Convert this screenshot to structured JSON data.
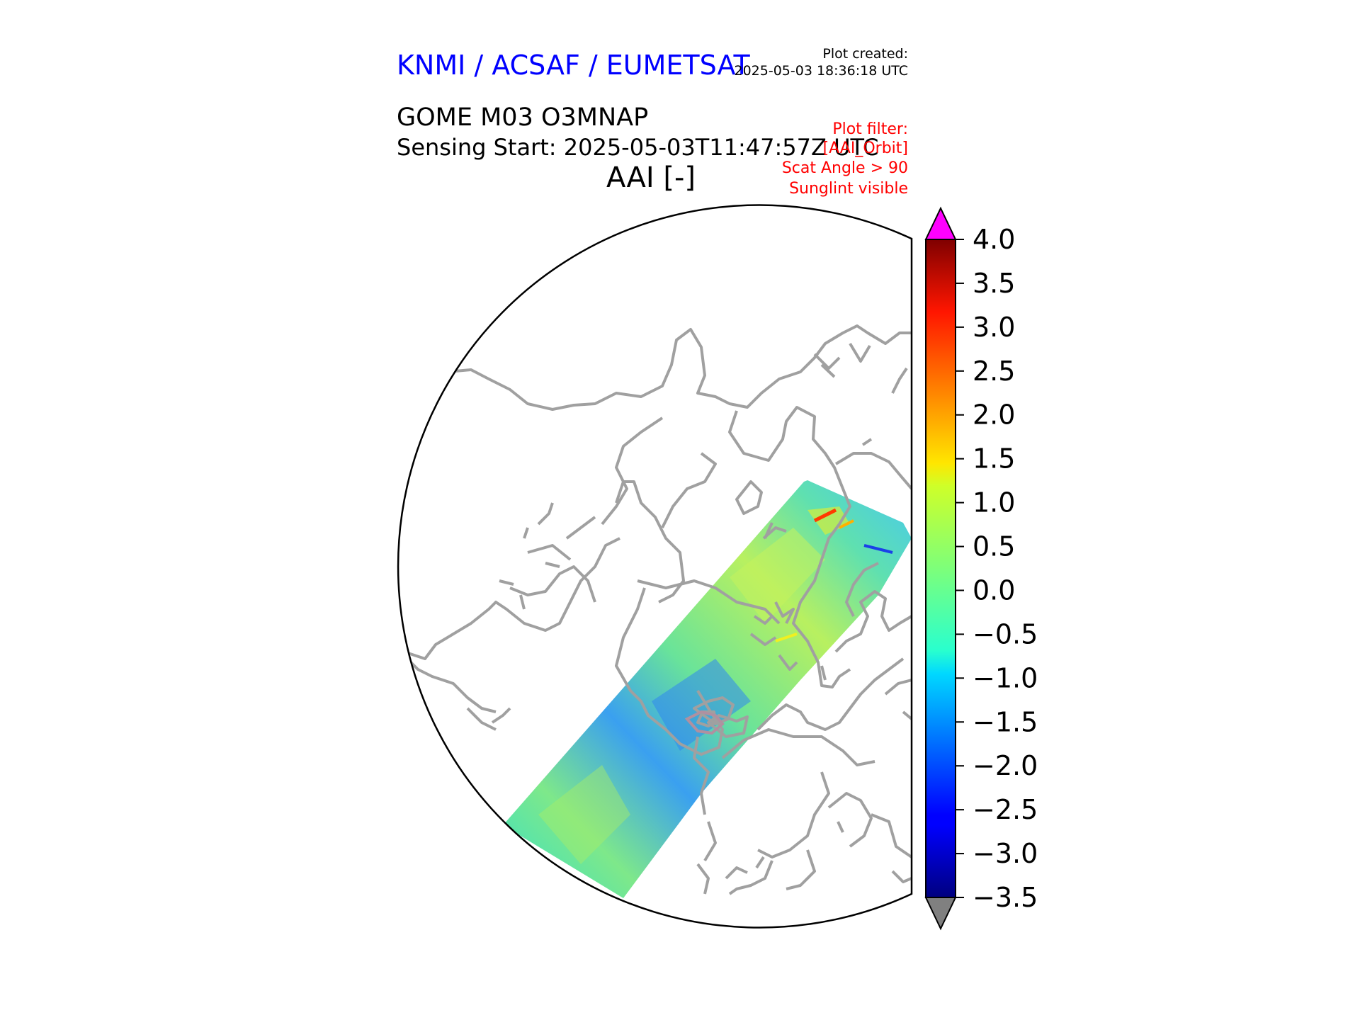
{
  "header": {
    "organization": "KNMI / ACSAF / EUMETSAT",
    "organization_color": "#0000ff",
    "plot_created_label": "Plot created:",
    "plot_created_time": "2025-05-03 18:36:18 UTC"
  },
  "product": {
    "title": "GOME M03 O3MNAP",
    "sensing_start": "Sensing Start: 2025-05-03T11:47:57Z UTC",
    "variable": "AAI [-]"
  },
  "plot_filter": {
    "color": "#ff0000",
    "lines": [
      "Plot filter:",
      "[AAI_Orbit]",
      "Scat Angle > 90",
      "Sunglint visible"
    ]
  },
  "map": {
    "projection": "north polar stereographic",
    "coastline_color": "#a0a0a0",
    "boundary_color": "#000000",
    "swath_colormap": "jet"
  },
  "colorbar": {
    "colormap": "jet",
    "min": -3.5,
    "max": 4.0,
    "ticks": [
      "4.0",
      "3.5",
      "3.0",
      "2.5",
      "2.0",
      "1.5",
      "1.0",
      "0.5",
      "0.0",
      "−0.5",
      "−1.0",
      "−1.5",
      "−2.0",
      "−2.5",
      "−3.0",
      "−3.5"
    ],
    "over_color": "#ff00ff",
    "under_color": "#808080"
  }
}
